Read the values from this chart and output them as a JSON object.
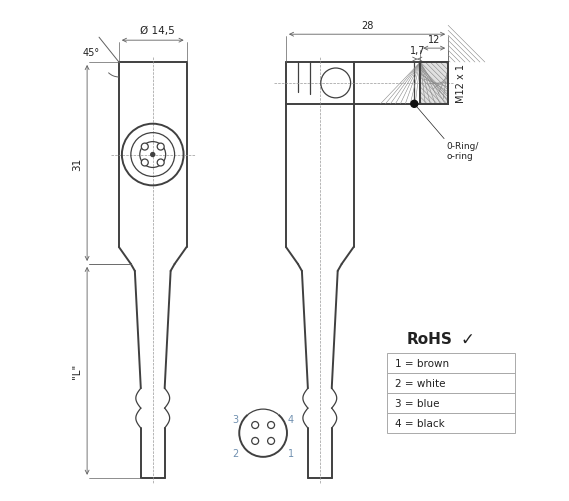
{
  "bg_color": "#ffffff",
  "line_color": "#404040",
  "dim_color": "#606060",
  "text_color": "#222222",
  "blue_text": "#7090b0",
  "hatch_color": "#888888",
  "pin_labels": [
    "1 = brown",
    "2 = white",
    "3 = blue",
    "4 = black"
  ],
  "rohs_text": "RoHS",
  "dim_28": "28",
  "dim_12": "12",
  "dim_17": "1,7",
  "dim_145": "Ø 14,5",
  "dim_31": "31",
  "dim_45": "45°",
  "dim_L": "\"L\"",
  "dim_M12": "M12 x 1",
  "oring_label": "0-Ring/\no-ring"
}
